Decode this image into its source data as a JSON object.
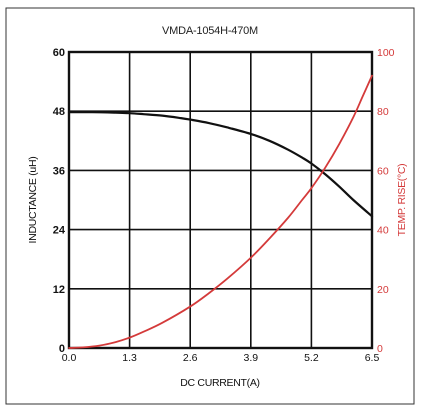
{
  "chart_data": {
    "type": "line",
    "title": "VMDA-1054H-470M",
    "xlabel": "DC CURRENT(A)",
    "ylabel": "INDUCTANCE (uH)",
    "y2label": "TEMP. RISE(°C)",
    "xlim": [
      0,
      6.5
    ],
    "ylim": [
      0,
      60
    ],
    "y2lim": [
      0,
      100
    ],
    "xticks": [
      0.0,
      1.3,
      2.6,
      3.9,
      5.2,
      6.5
    ],
    "xtick_labels": [
      "0.0",
      "1.3",
      "2.6",
      "3.9",
      "5.2",
      "6.5"
    ],
    "yticks": [
      0,
      12,
      24,
      36,
      48,
      60
    ],
    "ytick_labels": [
      "0",
      "12",
      "24",
      "36",
      "48",
      "60"
    ],
    "y2ticks": [
      0,
      20,
      40,
      60,
      80,
      100
    ],
    "y2tick_labels": [
      "0",
      "20",
      "40",
      "60",
      "80",
      "100"
    ],
    "grid": true,
    "series": [
      {
        "axis": "left",
        "color": "#111111",
        "x": [
          0.0,
          0.5,
          1.0,
          1.3,
          1.6,
          2.0,
          2.4,
          2.6,
          3.0,
          3.4,
          3.9,
          4.3,
          4.7,
          5.0,
          5.2,
          5.5,
          5.8,
          6.1,
          6.5
        ],
        "y": [
          47.8,
          47.8,
          47.7,
          47.6,
          47.4,
          47.1,
          46.6,
          46.3,
          45.6,
          44.7,
          43.4,
          42.0,
          40.2,
          38.6,
          37.4,
          35.2,
          32.7,
          30.0,
          26.7
        ]
      },
      {
        "axis": "right",
        "color": "#d43a3a",
        "x": [
          0.0,
          0.3,
          0.65,
          1.0,
          1.3,
          1.6,
          2.0,
          2.6,
          3.0,
          3.4,
          3.9,
          4.3,
          4.7,
          5.0,
          5.2,
          5.5,
          5.8,
          6.1,
          6.3,
          6.5
        ],
        "y": [
          0.0,
          0.2,
          0.8,
          2.0,
          3.5,
          5.5,
          8.5,
          14.0,
          18.5,
          23.5,
          30.5,
          37.0,
          44.0,
          50.0,
          54.0,
          61.0,
          69.0,
          78.0,
          85.0,
          92.0
        ]
      }
    ]
  },
  "colors": {
    "frame": "#333333",
    "grid": "#111111",
    "inductance_line": "#111111",
    "temperature_line": "#d43a3a",
    "right_axis_text": "#d43a3a"
  }
}
